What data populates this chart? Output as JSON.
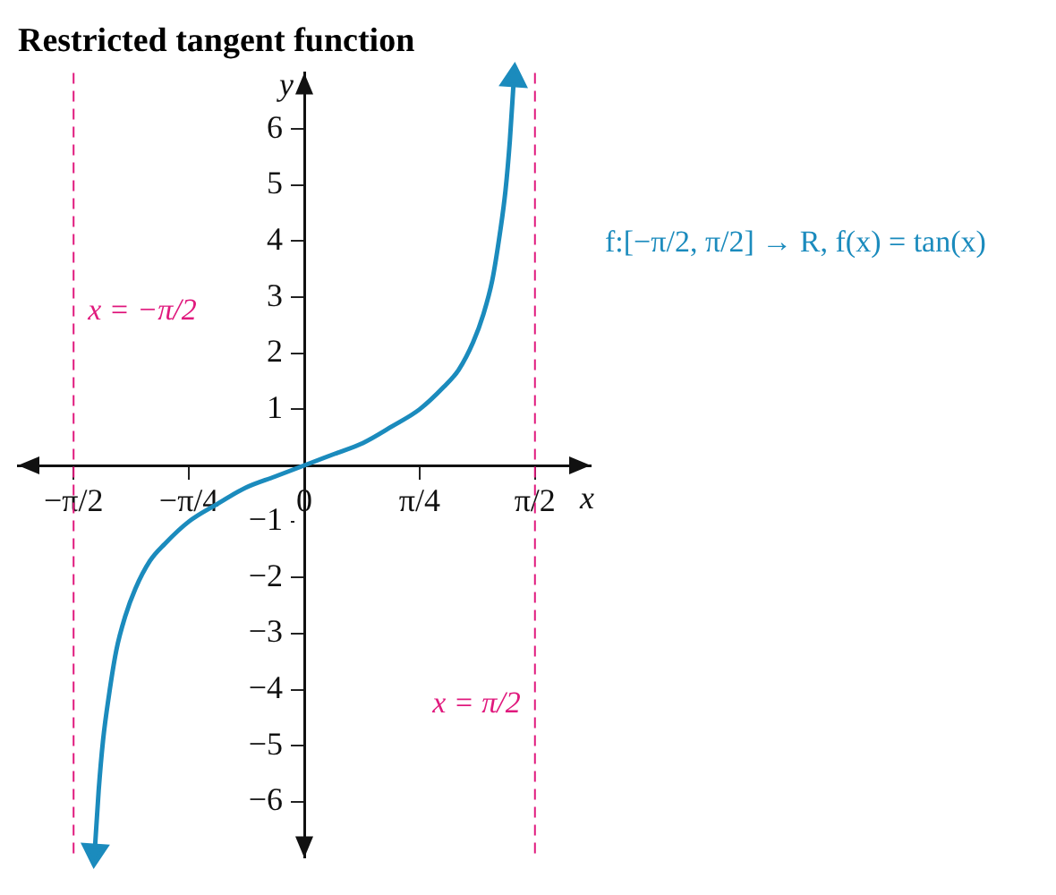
{
  "chart_data": {
    "type": "line",
    "title": "Restricted tangent function",
    "xlabel": "x",
    "ylabel": "y",
    "series": [
      {
        "color": "#1b8bbd",
        "x": [
          -1.427,
          -1.4,
          -1.37,
          -1.33,
          -1.28,
          -1.22,
          -1.15,
          -1.05,
          -0.95,
          -0.785,
          -0.6,
          -0.4,
          -0.2,
          0,
          0.2,
          0.4,
          0.6,
          0.785,
          0.95,
          1.05,
          1.15,
          1.22,
          1.28,
          1.33,
          1.37,
          1.4,
          1.427
        ],
        "values": [
          -6.9,
          -5.8,
          -4.9,
          -4.1,
          -3.3,
          -2.7,
          -2.2,
          -1.7,
          -1.4,
          -1.0,
          -0.7,
          -0.4,
          -0.2,
          0,
          0.2,
          0.4,
          0.7,
          1.0,
          1.4,
          1.7,
          2.2,
          2.7,
          3.3,
          4.1,
          4.9,
          5.8,
          6.9
        ]
      }
    ],
    "xlim": [
      -1.95,
      1.95
    ],
    "ylim": [
      -7,
      7
    ],
    "xticks": [
      {
        "value": -1.5708,
        "label": "−π/2"
      },
      {
        "value": -0.7854,
        "label": "−π/4"
      },
      {
        "value": 0,
        "label": "0"
      },
      {
        "value": 0.7854,
        "label": "π/4"
      },
      {
        "value": 1.5708,
        "label": "π/2"
      }
    ],
    "yticks": [
      -6,
      -5,
      -4,
      -3,
      -2,
      -1,
      1,
      2,
      3,
      4,
      5,
      6
    ],
    "ref_lines": [
      {
        "axis": "x",
        "value": -1.5708,
        "label": "x = −π/2",
        "color": "#e0197d",
        "line_style": "dashed"
      },
      {
        "axis": "x",
        "value": 1.5708,
        "label": "x = π/2",
        "color": "#e0197d",
        "line_style": "dashed"
      }
    ],
    "annotations": [
      "f:[−π/2, π/2] → R, f(x) = tan(x)"
    ],
    "grid": false,
    "legend": false,
    "marker": "none",
    "line_style": "solid"
  }
}
